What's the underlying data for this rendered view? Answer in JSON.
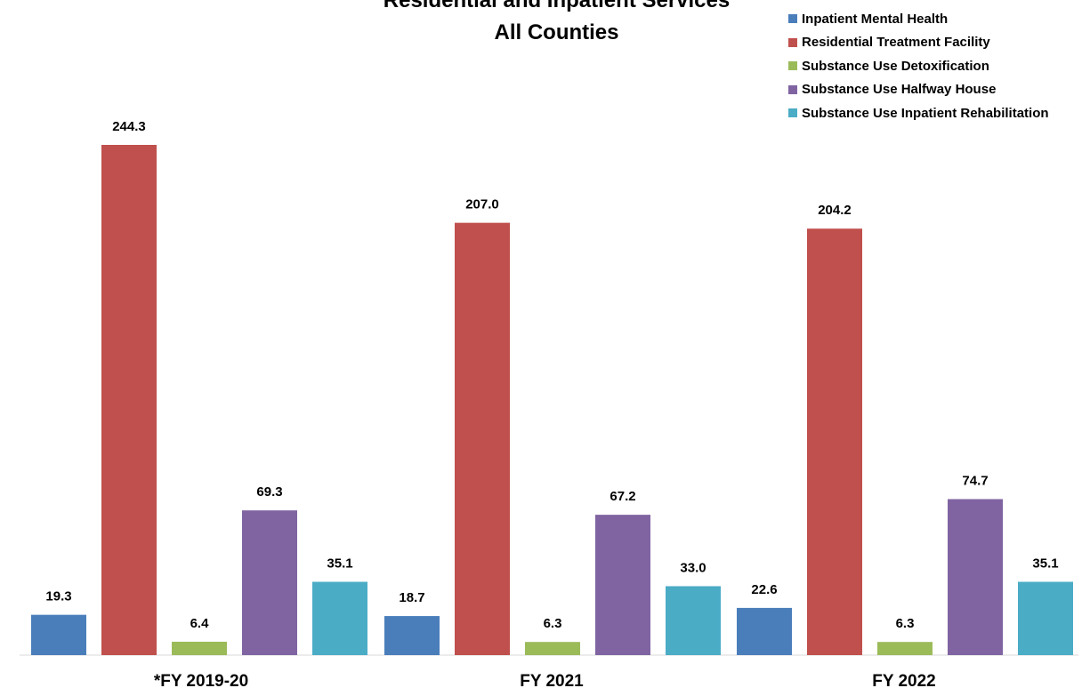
{
  "chart_data": {
    "type": "bar",
    "title_lines": [
      "Residential and Inpatient Services",
      "All Counties"
    ],
    "categories": [
      "*FY 2019-20",
      "FY 2021",
      "FY 2022"
    ],
    "series": [
      {
        "name": "Inpatient Mental Health",
        "color": "#4a7ebb",
        "values": [
          19.3,
          18.7,
          22.6
        ],
        "labels": [
          "19.3",
          "18.7",
          "22.6"
        ]
      },
      {
        "name": "Residential Treatment Facility",
        "color": "#c0504d",
        "values": [
          244.3,
          207.0,
          204.2
        ],
        "labels": [
          "244.3",
          "207.0",
          "204.2"
        ]
      },
      {
        "name": "Substance Use Detoxification",
        "color": "#9bbb59",
        "values": [
          6.4,
          6.3,
          6.3
        ],
        "labels": [
          "6.4",
          "6.3",
          "6.3"
        ]
      },
      {
        "name": "Substance Use Halfway House",
        "color": "#8064a2",
        "values": [
          69.3,
          67.2,
          74.7
        ],
        "labels": [
          "69.3",
          "67.2",
          "74.7"
        ]
      },
      {
        "name": "Substance Use Inpatient Rehabilitation",
        "color": "#4bacc6",
        "values": [
          35.1,
          33.0,
          35.1
        ],
        "labels": [
          "35.1",
          "33.0",
          "35.1"
        ]
      }
    ],
    "ylim": [
      0,
      244.3
    ],
    "legend_position": "top-right",
    "grid": false
  }
}
